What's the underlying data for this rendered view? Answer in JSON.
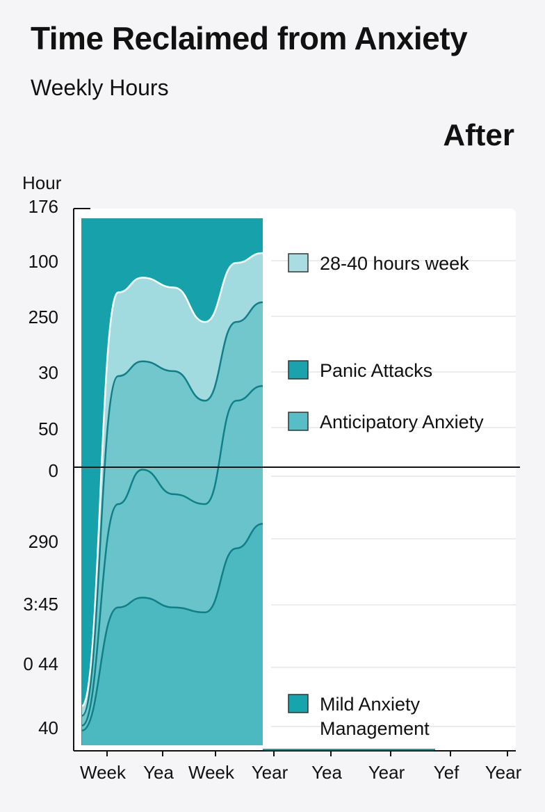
{
  "chart_data": {
    "type": "area",
    "title": "Time Reclaimed from Anxiety",
    "subtitle": "Weekly Hours",
    "panel_label": "After",
    "ylabel": "Hour",
    "y_tick_labels": [
      "176",
      "100",
      "250",
      "30",
      "50",
      "0",
      "290",
      "3:45",
      "0 44",
      "40"
    ],
    "x_tick_labels": [
      "Week",
      "Yea",
      "Week",
      "Year",
      "Yea",
      "Year",
      "Yef",
      "Year"
    ],
    "grid": true,
    "legend_position": "right",
    "series": [
      {
        "name": "28-40 hours week",
        "color": "#a9dde2",
        "values": [
          8,
          92,
          95,
          93,
          86,
          98,
          100
        ]
      },
      {
        "name": "Panic Attacks",
        "color": "#1aa3ad",
        "values": [
          6,
          75,
          78,
          76,
          70,
          86,
          90
        ]
      },
      {
        "name": "Anticipatory Anxiety",
        "color": "#57bec7",
        "values": [
          4,
          49,
          56,
          51,
          49,
          70,
          73
        ]
      },
      {
        "name": "Mild Anxiety Management",
        "color": "#17a5ad",
        "values": [
          3,
          28,
          30,
          28,
          27,
          40,
          45
        ]
      }
    ],
    "background_band_color": "#17a2ab"
  }
}
